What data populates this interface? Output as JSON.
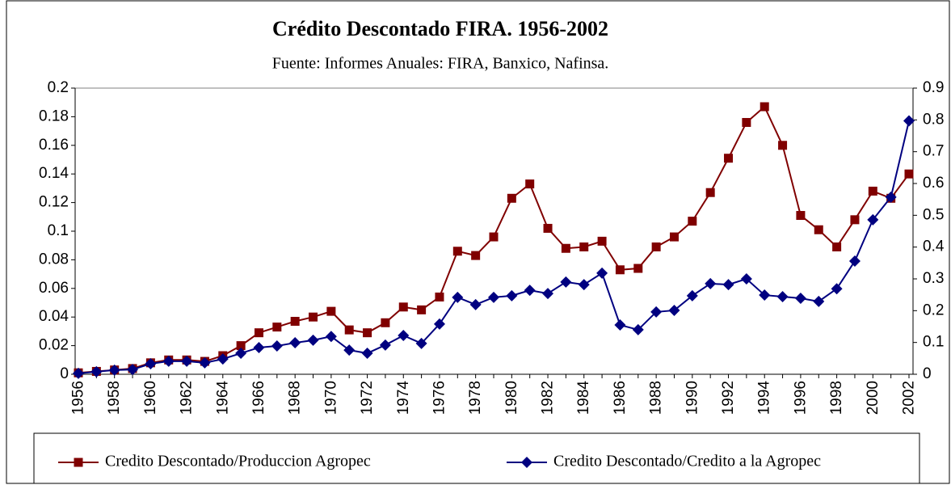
{
  "chart_data": {
    "type": "line",
    "title": "Crédito Descontado FIRA. 1956-2002",
    "subtitle": "Fuente: Informes Anuales: FIRA, Banxico, Nafinsa.",
    "categories": [
      "1956",
      null,
      "1958",
      null,
      "1960",
      null,
      "1962",
      null,
      "1964",
      null,
      "1966",
      null,
      "1968",
      null,
      "1970",
      null,
      "1972",
      null,
      "1974",
      null,
      "1976",
      null,
      "1978",
      null,
      "1980",
      null,
      "1982",
      null,
      "1984",
      null,
      "1986",
      null,
      "1988",
      null,
      "1990",
      null,
      "1992",
      null,
      "1994",
      null,
      "1996",
      null,
      "1998",
      null,
      "2000",
      null,
      "2002"
    ],
    "series": [
      {
        "name": "Credito Descontado/Produccion Agropec",
        "color": "#800000",
        "marker": "square",
        "values": [
          0.001,
          0.002,
          0.003,
          0.004,
          0.008,
          0.01,
          0.01,
          0.009,
          0.013,
          0.02,
          0.029,
          0.033,
          0.037,
          0.04,
          0.044,
          0.031,
          0.029,
          0.036,
          0.047,
          0.045,
          0.054,
          0.086,
          0.083,
          0.096,
          0.123,
          0.133,
          0.102,
          0.088,
          0.089,
          0.093,
          0.073,
          0.074,
          0.089,
          0.096,
          0.107,
          0.127,
          0.151,
          0.176,
          0.187,
          0.16,
          0.111,
          0.101,
          0.089,
          0.108,
          0.128,
          0.123,
          0.14
        ]
      },
      {
        "name": "Credito Descontado/Credito a la Agropec",
        "color": "#000080",
        "marker": "diamond",
        "axis": "y2",
        "values": [
          0.003,
          0.008,
          0.013,
          0.015,
          0.033,
          0.041,
          0.041,
          0.036,
          0.048,
          0.066,
          0.084,
          0.089,
          0.099,
          0.107,
          0.119,
          0.076,
          0.066,
          0.092,
          0.122,
          0.097,
          0.158,
          0.242,
          0.219,
          0.242,
          0.247,
          0.264,
          0.254,
          0.29,
          0.282,
          0.318,
          0.155,
          0.14,
          0.196,
          0.201,
          0.247,
          0.285,
          0.282,
          0.3,
          0.249,
          0.244,
          0.239,
          0.229,
          0.269,
          0.356,
          0.486,
          0.557,
          0.797
        ]
      }
    ],
    "ylim": [
      0,
      0.2
    ],
    "yticks": [
      0,
      0.02,
      0.04,
      0.06,
      0.08,
      0.1,
      0.12,
      0.14,
      0.16,
      0.18,
      0.2
    ],
    "y2lim": [
      0,
      0.9
    ],
    "y2ticks": [
      0,
      0.1,
      0.2,
      0.3,
      0.4,
      0.5,
      0.6,
      0.7,
      0.8,
      0.9
    ],
    "legend": "bottom",
    "grid": false
  }
}
